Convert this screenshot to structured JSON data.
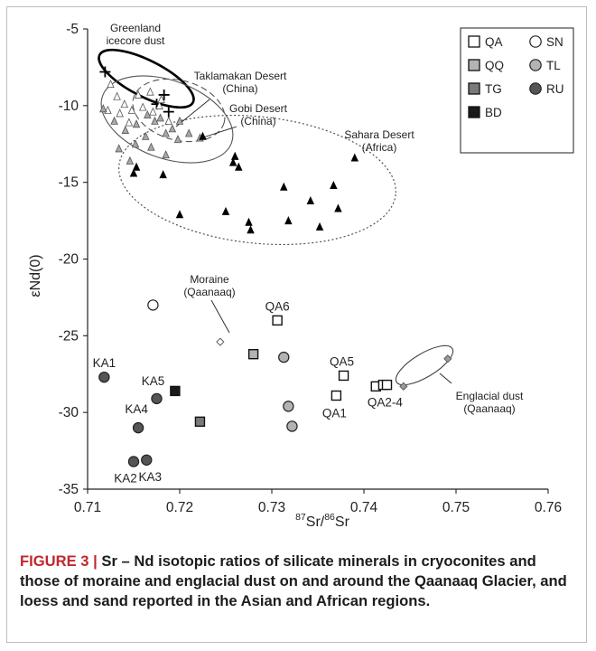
{
  "caption": {
    "label": "FIGURE 3 |",
    "text": " Sr – Nd isotopic ratios of silicate minerals in cryoconites and those of moraine and englacial dust on and around the Qaanaaq Glacier, and loess and sand reported in the Asian and African regions."
  },
  "chart_data": {
    "type": "scatter",
    "xlabel_prefix": "87",
    "xlabel_mid": "Sr/",
    "xlabel_prefix2": "86",
    "xlabel_end": "Sr",
    "ylabel": "εNd(0)",
    "xlim": [
      0.71,
      0.76
    ],
    "ylim": [
      -35,
      -5
    ],
    "xticks": [
      "0.71",
      "0.72",
      "0.73",
      "0.74",
      "0.75",
      "0.76"
    ],
    "yticks": [
      "-5",
      "-10",
      "-15",
      "-20",
      "-25",
      "-30",
      "-35"
    ],
    "legend": {
      "placement": "top-right",
      "items": [
        {
          "label": "QA",
          "marker": "square",
          "fill": "#ffffff"
        },
        {
          "label": "SN",
          "marker": "circle",
          "fill": "#ffffff"
        },
        {
          "label": "QQ",
          "marker": "square",
          "fill": "#b3b3b3"
        },
        {
          "label": "TL",
          "marker": "circle",
          "fill": "#b3b3b3"
        },
        {
          "label": "TG",
          "marker": "square",
          "fill": "#7a7a7a"
        },
        {
          "label": "RU",
          "marker": "circle",
          "fill": "#555555"
        },
        {
          "label": "BD",
          "marker": "square",
          "fill": "#1a1a1a"
        }
      ]
    },
    "series": [
      {
        "name": "QA",
        "marker": "square",
        "fill": "#ffffff",
        "points": [
          {
            "x": 0.7306,
            "y": -24.0,
            "label": "QA6"
          },
          {
            "x": 0.7378,
            "y": -27.6,
            "label": "QA5"
          },
          {
            "x": 0.737,
            "y": -28.9,
            "label": "QA1"
          },
          {
            "x": 0.7413,
            "y": -28.3,
            "label": ""
          },
          {
            "x": 0.7421,
            "y": -28.2,
            "label": "QA2-4"
          },
          {
            "x": 0.7425,
            "y": -28.2,
            "label": ""
          }
        ]
      },
      {
        "name": "SN",
        "marker": "circle",
        "fill": "#ffffff",
        "points": [
          {
            "x": 0.7171,
            "y": -23.0,
            "label": ""
          }
        ]
      },
      {
        "name": "QQ",
        "marker": "square",
        "fill": "#b3b3b3",
        "points": [
          {
            "x": 0.728,
            "y": -26.2,
            "label": ""
          }
        ]
      },
      {
        "name": "TL",
        "marker": "circle",
        "fill": "#b3b3b3",
        "points": [
          {
            "x": 0.7313,
            "y": -26.4,
            "label": ""
          },
          {
            "x": 0.7318,
            "y": -29.6,
            "label": ""
          },
          {
            "x": 0.7322,
            "y": -30.9,
            "label": ""
          }
        ]
      },
      {
        "name": "TG",
        "marker": "square",
        "fill": "#7a7a7a",
        "points": [
          {
            "x": 0.7222,
            "y": -30.6,
            "label": ""
          }
        ]
      },
      {
        "name": "RU",
        "marker": "circle",
        "fill": "#555555",
        "points": [
          {
            "x": 0.7118,
            "y": -27.7,
            "label": "KA1"
          },
          {
            "x": 0.7175,
            "y": -29.1,
            "label": "KA5"
          },
          {
            "x": 0.7155,
            "y": -31.0,
            "label": "KA4"
          },
          {
            "x": 0.715,
            "y": -33.2,
            "label": "KA2"
          },
          {
            "x": 0.7164,
            "y": -33.1,
            "label": "KA3"
          }
        ]
      },
      {
        "name": "BD",
        "marker": "square",
        "fill": "#1a1a1a",
        "points": [
          {
            "x": 0.7195,
            "y": -28.6,
            "label": ""
          }
        ]
      },
      {
        "name": "",
        "marker": "diamond",
        "fill": "#ffffff",
        "points": [
          {
            "x": 0.7244,
            "y": -25.4,
            "label": ""
          }
        ]
      },
      {
        "name": "",
        "marker": "diamond",
        "fill": "#9a9a9a",
        "points": [
          {
            "x": 0.7443,
            "y": -28.3,
            "label": ""
          },
          {
            "x": 0.7491,
            "y": -26.5,
            "label": ""
          }
        ]
      },
      {
        "name": "",
        "marker": "cross",
        "fill": "#000000",
        "points": [
          {
            "x": 0.7119,
            "y": -7.8,
            "label": ""
          },
          {
            "x": 0.7175,
            "y": -9.9,
            "label": ""
          },
          {
            "x": 0.7183,
            "y": -9.3,
            "label": ""
          },
          {
            "x": 0.7188,
            "y": -10.4,
            "label": ""
          }
        ]
      },
      {
        "name": "",
        "marker": "triangle",
        "fill": "#ffffff",
        "points": [
          {
            "x": 0.7125,
            "y": -8.6
          },
          {
            "x": 0.7132,
            "y": -9.4
          },
          {
            "x": 0.714,
            "y": -9.9
          },
          {
            "x": 0.7122,
            "y": -10.3
          },
          {
            "x": 0.7135,
            "y": -10.5
          },
          {
            "x": 0.7148,
            "y": -10.3
          },
          {
            "x": 0.716,
            "y": -10.1
          },
          {
            "x": 0.7171,
            "y": -10.4
          },
          {
            "x": 0.7178,
            "y": -10.0
          },
          {
            "x": 0.7155,
            "y": -9.3
          },
          {
            "x": 0.7168,
            "y": -9.1
          },
          {
            "x": 0.718,
            "y": -9.6
          },
          {
            "x": 0.7188,
            "y": -11.0
          },
          {
            "x": 0.7145,
            "y": -11.1
          }
        ]
      },
      {
        "name": "",
        "marker": "triangle",
        "fill": "#a8a8a8",
        "points": [
          {
            "x": 0.7117,
            "y": -10.2
          },
          {
            "x": 0.7129,
            "y": -11.0
          },
          {
            "x": 0.7141,
            "y": -11.6
          },
          {
            "x": 0.7153,
            "y": -11.2
          },
          {
            "x": 0.7163,
            "y": -12.0
          },
          {
            "x": 0.7169,
            "y": -12.7
          },
          {
            "x": 0.7152,
            "y": -12.5
          },
          {
            "x": 0.7173,
            "y": -11.0
          },
          {
            "x": 0.7185,
            "y": -11.8
          },
          {
            "x": 0.7192,
            "y": -11.5
          },
          {
            "x": 0.7198,
            "y": -12.2
          },
          {
            "x": 0.721,
            "y": -11.8
          },
          {
            "x": 0.7179,
            "y": -10.8
          },
          {
            "x": 0.7165,
            "y": -10.6
          },
          {
            "x": 0.7134,
            "y": -12.8
          },
          {
            "x": 0.7146,
            "y": -13.6
          },
          {
            "x": 0.7185,
            "y": -13.2
          },
          {
            "x": 0.7222,
            "y": -12.1
          },
          {
            "x": 0.72,
            "y": -11.0
          }
        ]
      },
      {
        "name": "",
        "marker": "triangle",
        "fill": "#000000",
        "points": [
          {
            "x": 0.715,
            "y": -14.4
          },
          {
            "x": 0.7153,
            "y": -14.0
          },
          {
            "x": 0.7182,
            "y": -14.5
          },
          {
            "x": 0.72,
            "y": -17.1
          },
          {
            "x": 0.7225,
            "y": -12.0
          },
          {
            "x": 0.725,
            "y": -16.9
          },
          {
            "x": 0.726,
            "y": -13.3
          },
          {
            "x": 0.7258,
            "y": -13.7
          },
          {
            "x": 0.7264,
            "y": -14.0
          },
          {
            "x": 0.7275,
            "y": -17.6
          },
          {
            "x": 0.7277,
            "y": -18.1
          },
          {
            "x": 0.7313,
            "y": -15.3
          },
          {
            "x": 0.7318,
            "y": -17.5
          },
          {
            "x": 0.7342,
            "y": -16.2
          },
          {
            "x": 0.7352,
            "y": -17.9
          },
          {
            "x": 0.7367,
            "y": -15.2
          },
          {
            "x": 0.7372,
            "y": -16.7
          },
          {
            "x": 0.739,
            "y": -13.4
          }
        ]
      }
    ],
    "regions": [
      {
        "label": "Greenland\nicecore dust",
        "style": "bold-solid"
      },
      {
        "label": "Taklamakan Desert\n(China)",
        "style": "solid"
      },
      {
        "label": "Gobi Desert\n(China)",
        "style": "dashed"
      },
      {
        "label": "Sahara Desert\n(Africa)",
        "style": "dotted"
      },
      {
        "label": "Moraine\n(Qaanaaq)",
        "style": "none"
      },
      {
        "label": "Englacial dust\n(Qaanaaq)",
        "style": "solid"
      }
    ]
  }
}
